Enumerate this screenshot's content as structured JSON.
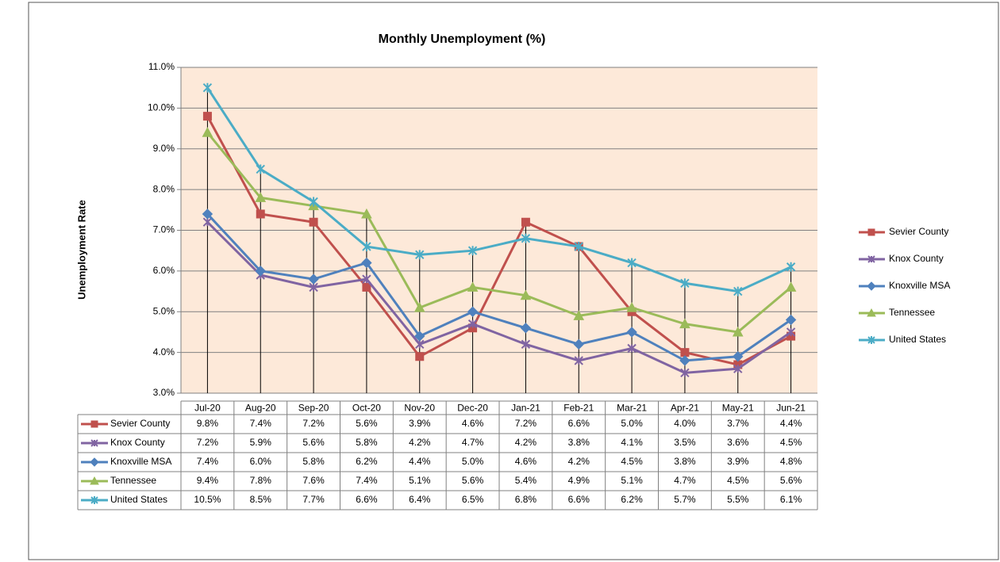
{
  "chart_data": {
    "type": "line",
    "title": "Monthly Unemployment (%)",
    "y_label": "Unemployment Rate",
    "categories": [
      "Jul-20",
      "Aug-20",
      "Sep-20",
      "Oct-20",
      "Nov-20",
      "Dec-20",
      "Jan-21",
      "Feb-21",
      "Mar-21",
      "Apr-21",
      "May-21",
      "Jun-21"
    ],
    "ylim": [
      3,
      11
    ],
    "yticks": [
      {
        "value": 3,
        "label": "3.0%"
      },
      {
        "value": 4,
        "label": "4.0%"
      },
      {
        "value": 5,
        "label": "5.0%"
      },
      {
        "value": 6,
        "label": "6.0%"
      },
      {
        "value": 7,
        "label": "7.0%"
      },
      {
        "value": 8,
        "label": "8.0%"
      },
      {
        "value": 9,
        "label": "9.0%"
      },
      {
        "value": 10,
        "label": "10.0%"
      },
      {
        "value": 11,
        "label": "11.0%"
      }
    ],
    "grid": true,
    "legend": "right",
    "plot_background": "#fde9d9",
    "series": [
      {
        "name": "Sevier County",
        "color": "#c0504d",
        "marker": "square",
        "values": [
          9.8,
          7.4,
          7.2,
          5.6,
          3.9,
          4.6,
          7.2,
          6.6,
          5.0,
          4.0,
          3.7,
          4.4
        ],
        "value_labels": [
          "9.8%",
          "7.4%",
          "7.2%",
          "5.6%",
          "3.9%",
          "4.6%",
          "7.2%",
          "6.6%",
          "5.0%",
          "4.0%",
          "3.7%",
          "4.4%"
        ]
      },
      {
        "name": "Knox County",
        "color": "#8064a2",
        "marker": "star",
        "values": [
          7.2,
          5.9,
          5.6,
          5.8,
          4.2,
          4.7,
          4.2,
          3.8,
          4.1,
          3.5,
          3.6,
          4.5
        ],
        "value_labels": [
          "7.2%",
          "5.9%",
          "5.6%",
          "5.8%",
          "4.2%",
          "4.7%",
          "4.2%",
          "3.8%",
          "4.1%",
          "3.5%",
          "3.6%",
          "4.5%"
        ]
      },
      {
        "name": "Knoxville MSA",
        "color": "#4f81bd",
        "marker": "diamond",
        "values": [
          7.4,
          6.0,
          5.8,
          6.2,
          4.4,
          5.0,
          4.6,
          4.2,
          4.5,
          3.8,
          3.9,
          4.8
        ],
        "value_labels": [
          "7.4%",
          "6.0%",
          "5.8%",
          "6.2%",
          "4.4%",
          "5.0%",
          "4.6%",
          "4.2%",
          "4.5%",
          "3.8%",
          "3.9%",
          "4.8%"
        ]
      },
      {
        "name": "Tennessee",
        "color": "#9bbb59",
        "marker": "triangle",
        "values": [
          9.4,
          7.8,
          7.6,
          7.4,
          5.1,
          5.6,
          5.4,
          4.9,
          5.1,
          4.7,
          4.5,
          5.6
        ],
        "value_labels": [
          "9.4%",
          "7.8%",
          "7.6%",
          "7.4%",
          "5.1%",
          "5.6%",
          "5.4%",
          "4.9%",
          "5.1%",
          "4.7%",
          "4.5%",
          "5.6%"
        ]
      },
      {
        "name": "United States",
        "color": "#4bacc6",
        "marker": "asterisk",
        "values": [
          10.5,
          8.5,
          7.7,
          6.6,
          6.4,
          6.5,
          6.8,
          6.6,
          6.2,
          5.7,
          5.5,
          6.1
        ],
        "value_labels": [
          "10.5%",
          "8.5%",
          "7.7%",
          "6.6%",
          "6.4%",
          "6.5%",
          "6.8%",
          "6.6%",
          "6.2%",
          "5.7%",
          "5.5%",
          "6.1%"
        ]
      }
    ]
  }
}
